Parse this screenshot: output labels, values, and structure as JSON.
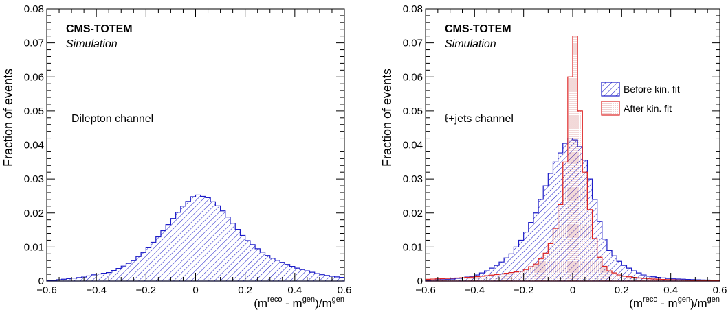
{
  "chart_data": [
    {
      "type": "histogram",
      "experiment": "CMS-TOTEM",
      "subtitle": "Simulation",
      "channel": "Dilepton channel",
      "ylabel": "Fraction of events",
      "xlabel": {
        "prefix": "(m",
        "sup1": "reco",
        "mid": " - m",
        "sup2": "gen",
        "end": ")/m",
        "sup3": "gen",
        "sub": "tt̄"
      },
      "xlim": [
        -0.6,
        0.6
      ],
      "ylim": [
        0,
        0.08
      ],
      "xticks": [
        "−0.6",
        "−0.4",
        "−0.2",
        "0",
        "0.2",
        "0.4",
        "0.6"
      ],
      "yticks": [
        "0",
        "0.01",
        "0.02",
        "0.03",
        "0.04",
        "0.05",
        "0.06",
        "0.07",
        "0.08"
      ],
      "series": [
        {
          "color": "#1c1cc8",
          "fill": "hatch",
          "points": [
            [
              -0.6,
              0.0
            ],
            [
              -0.55,
              0.0004
            ],
            [
              -0.5,
              0.0008
            ],
            [
              -0.45,
              0.0012
            ],
            [
              -0.4,
              0.002
            ],
            [
              -0.35,
              0.0025
            ],
            [
              -0.3,
              0.004
            ],
            [
              -0.25,
              0.006
            ],
            [
              -0.2,
              0.009
            ],
            [
              -0.15,
              0.013
            ],
            [
              -0.1,
              0.0175
            ],
            [
              -0.05,
              0.022
            ],
            [
              0.0,
              0.0255
            ],
            [
              0.05,
              0.0245
            ],
            [
              0.1,
              0.0215
            ],
            [
              0.15,
              0.017
            ],
            [
              0.2,
              0.0125
            ],
            [
              0.25,
              0.0095
            ],
            [
              0.3,
              0.007
            ],
            [
              0.35,
              0.0055
            ],
            [
              0.4,
              0.004
            ],
            [
              0.45,
              0.003
            ],
            [
              0.5,
              0.002
            ],
            [
              0.55,
              0.0014
            ],
            [
              0.6,
              0.001
            ]
          ]
        }
      ]
    },
    {
      "type": "histogram",
      "experiment": "CMS-TOTEM",
      "subtitle": "Simulation",
      "channel": "ℓ+jets channel",
      "ylabel": "Fraction of events",
      "xlabel": {
        "prefix": "(m",
        "sup1": "reco",
        "mid": " - m",
        "sup2": "gen",
        "end": ")/m",
        "sup3": "gen",
        "sub": "tt̄"
      },
      "xlim": [
        -0.6,
        0.6
      ],
      "ylim": [
        0,
        0.08
      ],
      "xticks": [
        "−0.6",
        "−0.4",
        "−0.2",
        "0",
        "0.2",
        "0.4",
        "0.6"
      ],
      "yticks": [
        "0",
        "0.01",
        "0.02",
        "0.03",
        "0.04",
        "0.05",
        "0.06",
        "0.07",
        "0.08"
      ],
      "legend": {
        "placement": "top-right"
      },
      "series": [
        {
          "name": "Before kin. fit",
          "color": "#1c1cc8",
          "fill": "hatch",
          "points": [
            [
              -0.6,
              0.0002
            ],
            [
              -0.5,
              0.0005
            ],
            [
              -0.4,
              0.0015
            ],
            [
              -0.35,
              0.003
            ],
            [
              -0.3,
              0.005
            ],
            [
              -0.25,
              0.008
            ],
            [
              -0.2,
              0.013
            ],
            [
              -0.15,
              0.02
            ],
            [
              -0.1,
              0.03
            ],
            [
              -0.07,
              0.035
            ],
            [
              -0.04,
              0.039
            ],
            [
              -0.02,
              0.042
            ],
            [
              0.0,
              0.042
            ],
            [
              0.02,
              0.041
            ],
            [
              0.04,
              0.038
            ],
            [
              0.06,
              0.033
            ],
            [
              0.08,
              0.027
            ],
            [
              0.1,
              0.021
            ],
            [
              0.12,
              0.014
            ],
            [
              0.15,
              0.009
            ],
            [
              0.2,
              0.005
            ],
            [
              0.25,
              0.003
            ],
            [
              0.3,
              0.0015
            ],
            [
              0.4,
              0.0007
            ],
            [
              0.5,
              0.0004
            ],
            [
              0.6,
              0.0002
            ]
          ]
        },
        {
          "name": "After kin. fit",
          "color": "#dd2222",
          "fill": "dots",
          "points": [
            [
              -0.6,
              0.0005
            ],
            [
              -0.5,
              0.0008
            ],
            [
              -0.4,
              0.0012
            ],
            [
              -0.3,
              0.002
            ],
            [
              -0.2,
              0.003
            ],
            [
              -0.15,
              0.005
            ],
            [
              -0.1,
              0.009
            ],
            [
              -0.08,
              0.013
            ],
            [
              -0.06,
              0.018
            ],
            [
              -0.04,
              0.027
            ],
            [
              -0.03,
              0.035
            ],
            [
              -0.02,
              0.048
            ],
            [
              -0.01,
              0.06
            ],
            [
              0.0,
              0.07
            ],
            [
              0.01,
              0.072
            ],
            [
              0.02,
              0.065
            ],
            [
              0.03,
              0.05
            ],
            [
              0.04,
              0.038
            ],
            [
              0.06,
              0.026
            ],
            [
              0.08,
              0.016
            ],
            [
              0.1,
              0.009
            ],
            [
              0.12,
              0.005
            ],
            [
              0.15,
              0.003
            ],
            [
              0.2,
              0.0015
            ],
            [
              0.3,
              0.0007
            ],
            [
              0.4,
              0.0004
            ],
            [
              0.5,
              0.0002
            ],
            [
              0.6,
              0.0001
            ]
          ]
        }
      ]
    }
  ]
}
